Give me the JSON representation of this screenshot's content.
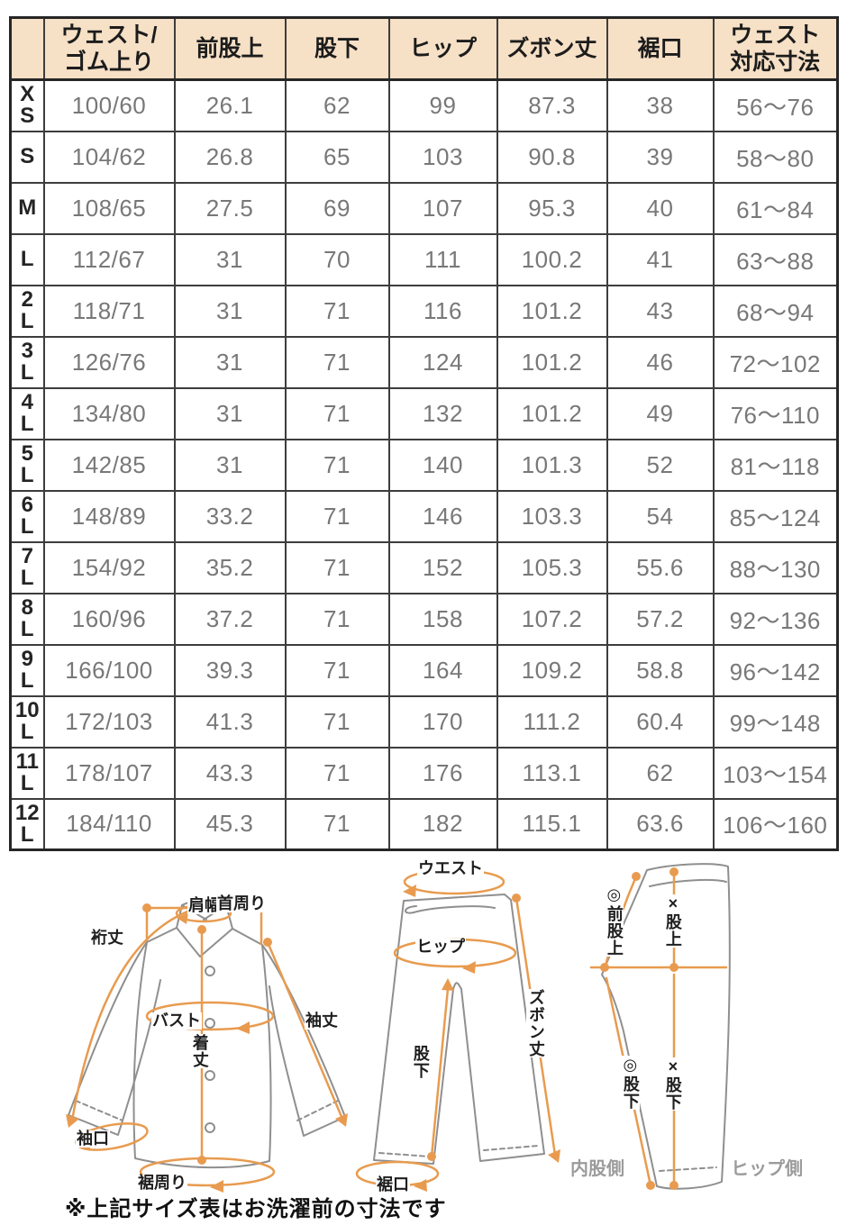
{
  "table": {
    "corner_label": "",
    "columns": [
      "ウェスト/\nゴム上り",
      "前股上",
      "股下",
      "ヒップ",
      "ズボン丈",
      "裾口",
      "ウェスト\n対応寸法"
    ],
    "rows": [
      {
        "size": "X\nS",
        "cells": [
          "100/60",
          "26.1",
          "62",
          "99",
          "87.3",
          "38",
          "56〜76"
        ]
      },
      {
        "size": "S",
        "cells": [
          "104/62",
          "26.8",
          "65",
          "103",
          "90.8",
          "39",
          "58〜80"
        ]
      },
      {
        "size": "M",
        "cells": [
          "108/65",
          "27.5",
          "69",
          "107",
          "95.3",
          "40",
          "61〜84"
        ]
      },
      {
        "size": "L",
        "cells": [
          "112/67",
          "31",
          "70",
          "111",
          "100.2",
          "41",
          "63〜88"
        ]
      },
      {
        "size": "2\nL",
        "cells": [
          "118/71",
          "31",
          "71",
          "116",
          "101.2",
          "43",
          "68〜94"
        ]
      },
      {
        "size": "3\nL",
        "cells": [
          "126/76",
          "31",
          "71",
          "124",
          "101.2",
          "46",
          "72〜102"
        ]
      },
      {
        "size": "4\nL",
        "cells": [
          "134/80",
          "31",
          "71",
          "132",
          "101.2",
          "49",
          "76〜110"
        ]
      },
      {
        "size": "5\nL",
        "cells": [
          "142/85",
          "31",
          "71",
          "140",
          "101.3",
          "52",
          "81〜118"
        ]
      },
      {
        "size": "6\nL",
        "cells": [
          "148/89",
          "33.2",
          "71",
          "146",
          "103.3",
          "54",
          "85〜124"
        ]
      },
      {
        "size": "7\nL",
        "cells": [
          "154/92",
          "35.2",
          "71",
          "152",
          "105.3",
          "55.6",
          "88〜130"
        ]
      },
      {
        "size": "8\nL",
        "cells": [
          "160/96",
          "37.2",
          "71",
          "158",
          "107.2",
          "57.2",
          "92〜136"
        ]
      },
      {
        "size": "9\nL",
        "cells": [
          "166/100",
          "39.3",
          "71",
          "164",
          "109.2",
          "58.8",
          "96〜142"
        ]
      },
      {
        "size": "10\nL",
        "cells": [
          "172/103",
          "41.3",
          "71",
          "170",
          "111.2",
          "60.4",
          "99〜148"
        ]
      },
      {
        "size": "11\nL",
        "cells": [
          "178/107",
          "43.3",
          "71",
          "176",
          "113.1",
          "62",
          "103〜154"
        ]
      },
      {
        "size": "12\nL",
        "cells": [
          "184/110",
          "45.3",
          "71",
          "182",
          "115.1",
          "63.6",
          "106〜160"
        ]
      }
    ]
  },
  "diagrams": {
    "jacket": {
      "shoulder_width": "肩幅",
      "neck": "首周り",
      "yuki_length": "裄丈",
      "bust": "バスト",
      "sleeve_length": "袖丈",
      "body_length": "着丈",
      "sleeve_opening": "袖口",
      "hem_around": "裾周り"
    },
    "pants_front": {
      "waist": "ウエスト",
      "hip": "ヒップ",
      "pants_length": "ズボン丈",
      "inseam": "股下",
      "hem_opening": "裾口"
    },
    "pants_side": {
      "front_rise": "◎前股上",
      "rise": "×股上",
      "inseam_inner": "◎股下",
      "inseam_side": "×股下",
      "inner_side": "内股側",
      "hip_side": "ヒップ側"
    }
  },
  "note": "※上記サイズ表はお洗濯前の寸法です",
  "colors": {
    "header_bg": "#f6e0c6",
    "accent_orange": "#e89b4f",
    "data_text": "#787878",
    "outline_gray": "#8f8f8f"
  }
}
